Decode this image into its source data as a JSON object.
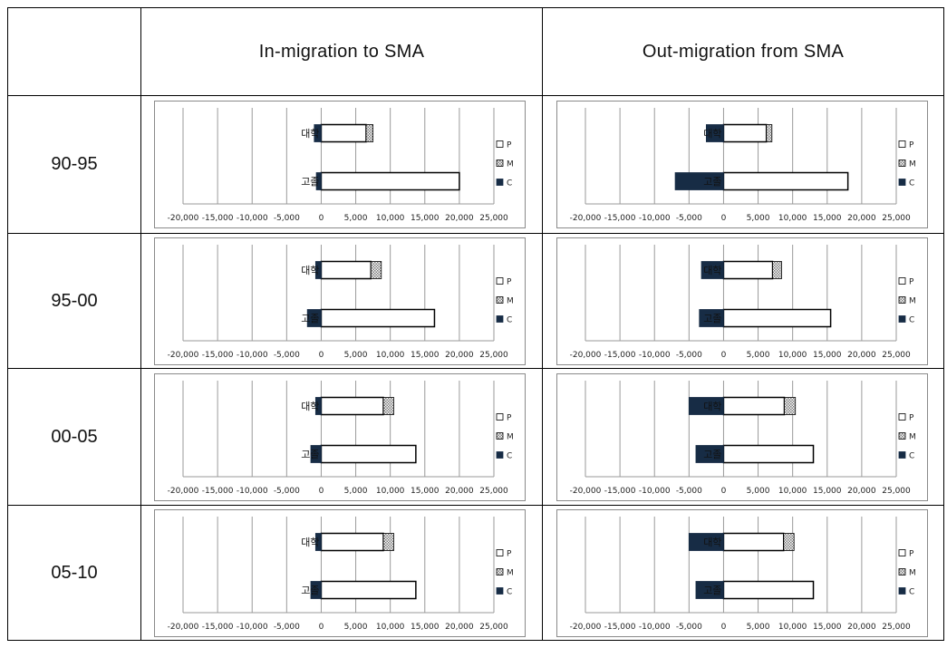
{
  "table": {
    "corner": "",
    "col_headers": [
      "In-migration to SMA",
      "Out-migration from SMA"
    ],
    "row_labels": [
      "90-95",
      "95-00",
      "00-05",
      "05-10"
    ]
  },
  "colors": {
    "P": "#ffffff",
    "M": "#d8d8d8",
    "C": "#172c45",
    "grid": "#9a9a9a",
    "border": "#000000"
  },
  "chart_data": [
    {
      "type": "bar",
      "orientation": "horizontal",
      "stacked": true,
      "period": "90-95",
      "panel": "In-migration to SMA",
      "categories": [
        "대학",
        "고졸"
      ],
      "series": [
        {
          "name": "P",
          "values": [
            6500,
            20000
          ]
        },
        {
          "name": "M",
          "values": [
            1000,
            0
          ]
        },
        {
          "name": "C",
          "values": [
            -1000,
            -700
          ]
        }
      ],
      "xlim": [
        -20000,
        25000
      ],
      "xticks": [
        "-20,000",
        "-15,000",
        "-10,000",
        "-5,000",
        "0",
        "5,000",
        "10,000",
        "15,000",
        "20,000",
        "25,000"
      ],
      "legend": [
        "P",
        "M",
        "C"
      ],
      "legend_position": "right"
    },
    {
      "type": "bar",
      "orientation": "horizontal",
      "stacked": true,
      "period": "90-95",
      "panel": "Out-migration from SMA",
      "categories": [
        "대학",
        "고졸"
      ],
      "series": [
        {
          "name": "P",
          "values": [
            6200,
            18000
          ]
        },
        {
          "name": "M",
          "values": [
            800,
            0
          ]
        },
        {
          "name": "C",
          "values": [
            -2500,
            -7000
          ]
        }
      ],
      "xlim": [
        -20000,
        25000
      ],
      "xticks": [
        "-20,000",
        "-15,000",
        "-10,000",
        "-5,000",
        "0",
        "5,000",
        "10,000",
        "15,000",
        "20,000",
        "25,000"
      ],
      "legend": [
        "P",
        "M",
        "C"
      ],
      "legend_position": "right"
    },
    {
      "type": "bar",
      "orientation": "horizontal",
      "stacked": true,
      "period": "95-00",
      "panel": "In-migration to SMA",
      "categories": [
        "대학",
        "고졸"
      ],
      "series": [
        {
          "name": "P",
          "values": [
            7200,
            16400
          ]
        },
        {
          "name": "M",
          "values": [
            1500,
            0
          ]
        },
        {
          "name": "C",
          "values": [
            -800,
            -2000
          ]
        }
      ],
      "xlim": [
        -20000,
        25000
      ],
      "xticks": [
        "-20,000",
        "-15,000",
        "-10,000",
        "-5,000",
        "0",
        "5,000",
        "10,000",
        "15,000",
        "20,000",
        "25,000"
      ],
      "legend": [
        "P",
        "M",
        "C"
      ],
      "legend_position": "right"
    },
    {
      "type": "bar",
      "orientation": "horizontal",
      "stacked": true,
      "period": "95-00",
      "panel": "Out-migration from SMA",
      "categories": [
        "대학",
        "고졸"
      ],
      "series": [
        {
          "name": "P",
          "values": [
            7100,
            15500
          ]
        },
        {
          "name": "M",
          "values": [
            1300,
            0
          ]
        },
        {
          "name": "C",
          "values": [
            -3200,
            -3500
          ]
        }
      ],
      "xlim": [
        -20000,
        25000
      ],
      "xticks": [
        "-20,000",
        "-15,000",
        "-10,000",
        "-5,000",
        "0",
        "5,000",
        "10,000",
        "15,000",
        "20,000",
        "25,000"
      ],
      "legend": [
        "P",
        "M",
        "C"
      ],
      "legend_position": "right"
    },
    {
      "type": "bar",
      "orientation": "horizontal",
      "stacked": true,
      "period": "00-05",
      "panel": "In-migration to SMA",
      "categories": [
        "대학",
        "고졸"
      ],
      "series": [
        {
          "name": "P",
          "values": [
            9000,
            13700
          ]
        },
        {
          "name": "M",
          "values": [
            1500,
            0
          ]
        },
        {
          "name": "C",
          "values": [
            -800,
            -1500
          ]
        }
      ],
      "xlim": [
        -20000,
        25000
      ],
      "xticks": [
        "-20,000",
        "-15,000",
        "-10,000",
        "-5,000",
        "0",
        "5,000",
        "10,000",
        "15,000",
        "20,000",
        "25,000"
      ],
      "legend": [
        "P",
        "M",
        "C"
      ],
      "legend_position": "right"
    },
    {
      "type": "bar",
      "orientation": "horizontal",
      "stacked": true,
      "period": "00-05",
      "panel": "Out-migration from SMA",
      "categories": [
        "대학",
        "고졸"
      ],
      "series": [
        {
          "name": "P",
          "values": [
            8800,
            13000
          ]
        },
        {
          "name": "M",
          "values": [
            1600,
            0
          ]
        },
        {
          "name": "C",
          "values": [
            -5000,
            -4000
          ]
        }
      ],
      "xlim": [
        -20000,
        25000
      ],
      "xticks": [
        "-20,000",
        "-15,000",
        "-10,000",
        "-5,000",
        "0",
        "5,000",
        "10,000",
        "15,000",
        "20,000",
        "25,000"
      ],
      "legend": [
        "P",
        "M",
        "C"
      ],
      "legend_position": "right"
    },
    {
      "type": "bar",
      "orientation": "horizontal",
      "stacked": true,
      "period": "05-10",
      "panel": "In-migration to SMA",
      "categories": [
        "대학",
        "고졸"
      ],
      "series": [
        {
          "name": "P",
          "values": [
            9000,
            13700
          ]
        },
        {
          "name": "M",
          "values": [
            1500,
            0
          ]
        },
        {
          "name": "C",
          "values": [
            -800,
            -1500
          ]
        }
      ],
      "xlim": [
        -20000,
        25000
      ],
      "xticks": [
        "-20,000",
        "-15,000",
        "-10,000",
        "-5,000",
        "0",
        "5,000",
        "10,000",
        "15,000",
        "20,000",
        "25,000"
      ],
      "legend": [
        "P",
        "M",
        "C"
      ],
      "legend_position": "right"
    },
    {
      "type": "bar",
      "orientation": "horizontal",
      "stacked": true,
      "period": "05-10",
      "panel": "Out-migration from SMA",
      "categories": [
        "대학",
        "고졸"
      ],
      "series": [
        {
          "name": "P",
          "values": [
            8700,
            13000
          ]
        },
        {
          "name": "M",
          "values": [
            1500,
            0
          ]
        },
        {
          "name": "C",
          "values": [
            -5000,
            -4000
          ]
        }
      ],
      "xlim": [
        -20000,
        25000
      ],
      "xticks": [
        "-20,000",
        "-15,000",
        "-10,000",
        "-5,000",
        "0",
        "5,000",
        "10,000",
        "15,000",
        "20,000",
        "25,000"
      ],
      "legend": [
        "P",
        "M",
        "C"
      ],
      "legend_position": "right"
    }
  ]
}
